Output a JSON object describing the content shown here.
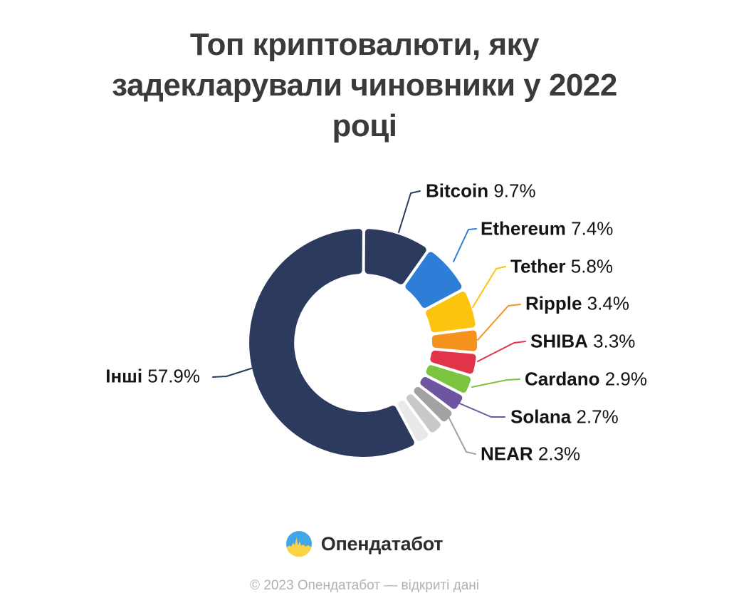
{
  "title": {
    "text": "Топ криптовалюти, яку задекларували чиновники у 2022 році",
    "lines": [
      "Топ криптовалюти, яку",
      "задекларували чиновники у 2022",
      "році"
    ]
  },
  "chart_data": {
    "type": "pie",
    "subtype": "donut",
    "title": "Топ криптовалюти, яку задекларували чиновники у 2022 році",
    "units": "%",
    "donut_hole": true,
    "legend_position": "callout-labels",
    "slices": [
      {
        "name": "Bitcoin",
        "value": 9.7,
        "pct_label": "9.7%",
        "color": "#2b3a5d",
        "labeled": true
      },
      {
        "name": "Ethereum",
        "value": 7.4,
        "pct_label": "7.4%",
        "color": "#2e7ed8",
        "labeled": true
      },
      {
        "name": "Tether",
        "value": 5.8,
        "pct_label": "5.8%",
        "color": "#fcc30f",
        "labeled": true
      },
      {
        "name": "Ripple",
        "value": 3.4,
        "pct_label": "3.4%",
        "color": "#f6921e",
        "labeled": true
      },
      {
        "name": "SHIBA",
        "value": 3.3,
        "pct_label": "3.3%",
        "color": "#e23349",
        "labeled": true
      },
      {
        "name": "Cardano",
        "value": 2.9,
        "pct_label": "2.9%",
        "color": "#7cc440",
        "labeled": true
      },
      {
        "name": "Solana",
        "value": 2.7,
        "pct_label": "2.7%",
        "color": "#6e55a0",
        "labeled": true
      },
      {
        "name": "NEAR",
        "value": 2.3,
        "pct_label": "2.3%",
        "color": "#a2a2a2",
        "labeled": true
      },
      {
        "name": "",
        "value": 2.3,
        "pct_label": "",
        "color": "#c9c9c9",
        "labeled": false
      },
      {
        "name": "",
        "value": 2.3,
        "pct_label": "",
        "color": "#e9e9e9",
        "labeled": false
      },
      {
        "name": "Інші",
        "value": 57.9,
        "pct_label": "57.9%",
        "color": "#2b3a5d",
        "labeled": true
      }
    ]
  },
  "footer": {
    "brand": "Опендатабот",
    "copyright": "© 2023 Опендатабот — відкриті дані"
  }
}
